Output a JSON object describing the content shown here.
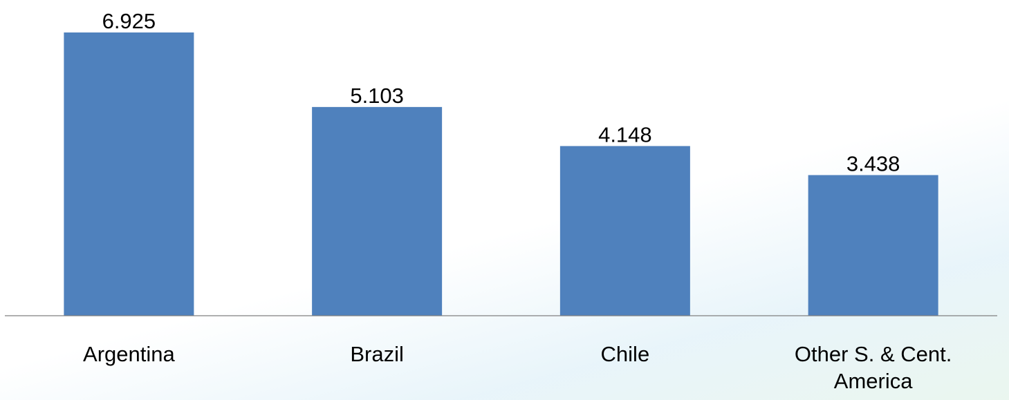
{
  "chart_data": {
    "type": "bar",
    "categories": [
      "Argentina",
      "Brazil",
      "Chile",
      "Other S. & Cent. America"
    ],
    "category_label_lines": [
      [
        "Argentina"
      ],
      [
        "Brazil"
      ],
      [
        "Chile"
      ],
      [
        "Other S. & Cent.",
        "America"
      ]
    ],
    "values": [
      6.925,
      5.103,
      4.148,
      3.438
    ],
    "data_labels": [
      "6.925",
      "5.103",
      "4.148",
      "3.438"
    ],
    "title": "",
    "xlabel": "",
    "ylabel": "",
    "ylim": [
      0,
      8
    ],
    "grid": false,
    "legend": "none",
    "bar_color": "#4f81bd",
    "axis_color": "#7f7f7f"
  }
}
